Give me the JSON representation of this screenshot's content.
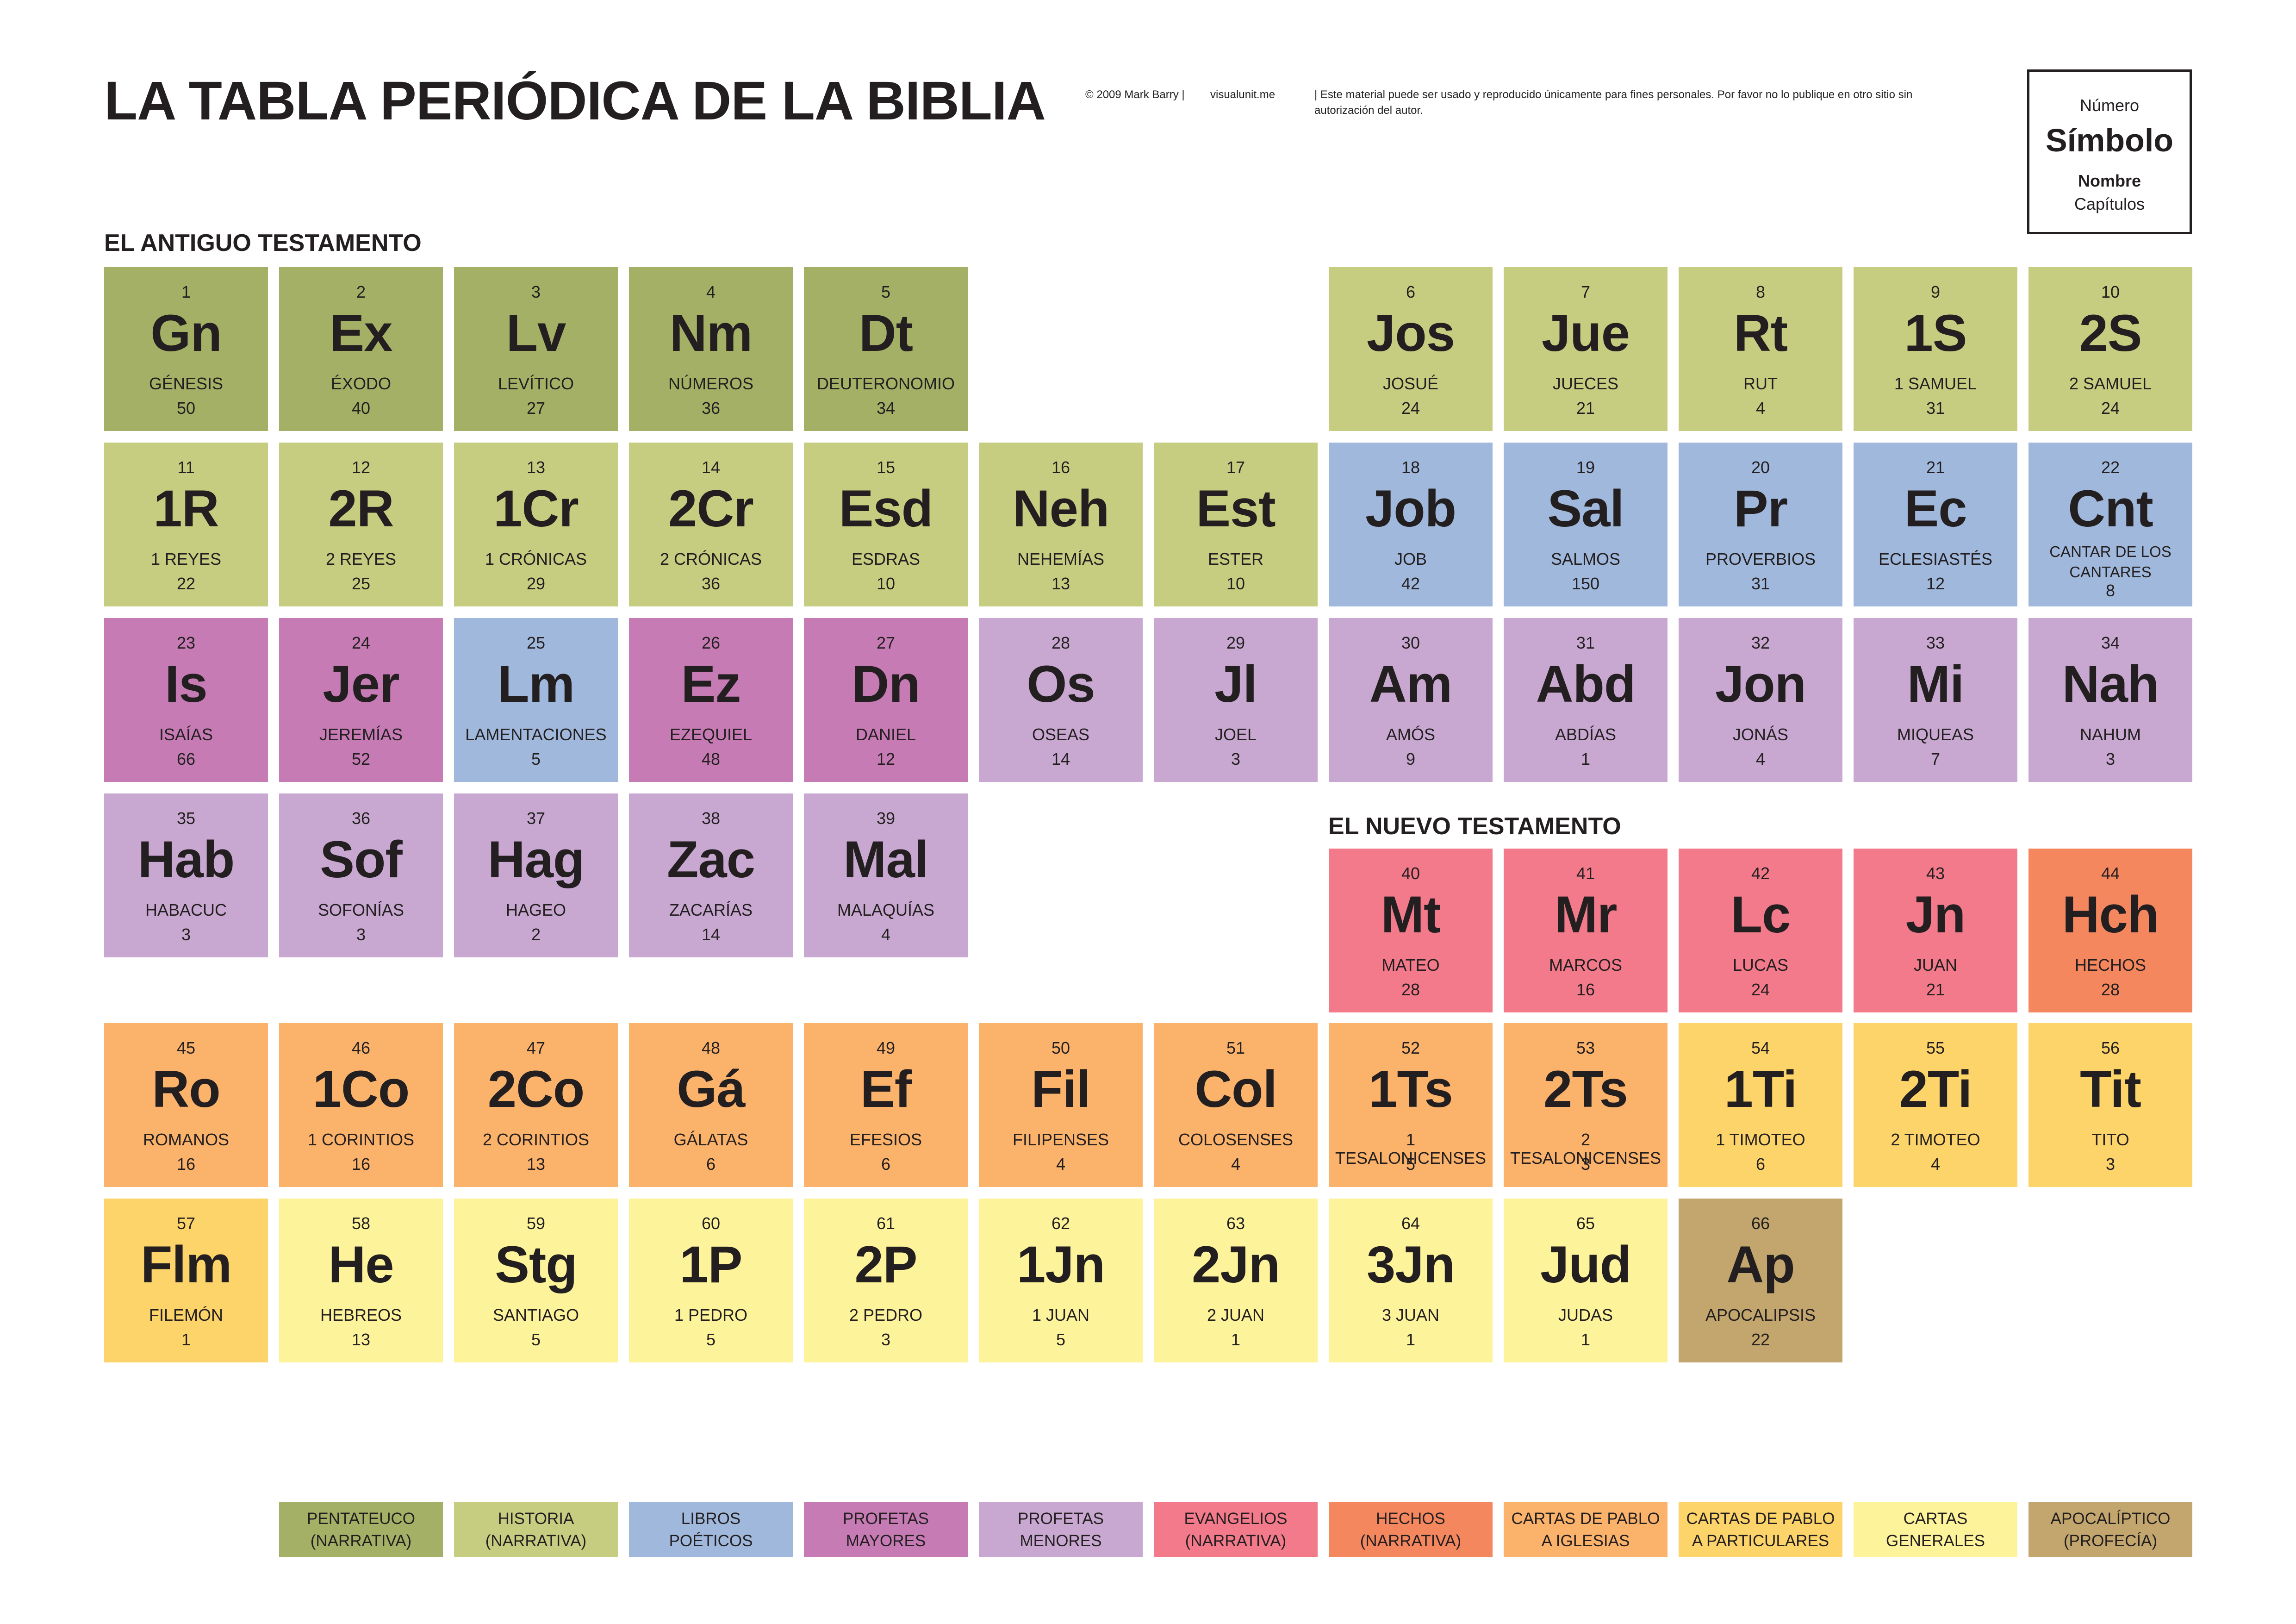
{
  "title": "LA TABLA PERIÓDICA DE LA BIBLIA",
  "credit": {
    "copyright": "© 2009 Mark Barry  |",
    "site": "visualunit.me",
    "notice": "|  Este material puede ser usado y reproducido únicamente para fines personales. Por favor no lo publique en otro sitio sin autorización del autor."
  },
  "key": {
    "number": "Número",
    "symbol": "Símbolo",
    "name": "Nombre",
    "chapters": "Capítulos"
  },
  "sections": {
    "old_testament": "EL ANTIGUO TESTAMENTO",
    "new_testament": "EL NUEVO TESTAMENTO"
  },
  "colors": {
    "pentateuco": "#a3b065",
    "historia": "#c6cd80",
    "poeticos": "#a0b8dc",
    "profetas_mayores": "#c67bb4",
    "profetas_menores": "#c8a8d1",
    "evangelios": "#f27a8a",
    "hechos": "#f5875f",
    "cartas_iglesias": "#fbb26a",
    "cartas_particulares": "#fdd469",
    "cartas_generales": "#fdf39b",
    "apocaliptico": "#c3a66d"
  },
  "elements": [
    {
      "n": "1",
      "s": "Gn",
      "name": "GÉNESIS",
      "ch": "50",
      "cat": "pentateuco"
    },
    {
      "n": "2",
      "s": "Ex",
      "name": "ÉXODO",
      "ch": "40",
      "cat": "pentateuco"
    },
    {
      "n": "3",
      "s": "Lv",
      "name": "LEVÍTICO",
      "ch": "27",
      "cat": "pentateuco"
    },
    {
      "n": "4",
      "s": "Nm",
      "name": "NÚMEROS",
      "ch": "36",
      "cat": "pentateuco"
    },
    {
      "n": "5",
      "s": "Dt",
      "name": "DEUTERONOMIO",
      "ch": "34",
      "cat": "pentateuco"
    },
    {
      "n": "6",
      "s": "Jos",
      "name": "JOSUÉ",
      "ch": "24",
      "cat": "historia"
    },
    {
      "n": "7",
      "s": "Jue",
      "name": "JUECES",
      "ch": "21",
      "cat": "historia"
    },
    {
      "n": "8",
      "s": "Rt",
      "name": "RUT",
      "ch": "4",
      "cat": "historia"
    },
    {
      "n": "9",
      "s": "1S",
      "name": "1 SAMUEL",
      "ch": "31",
      "cat": "historia"
    },
    {
      "n": "10",
      "s": "2S",
      "name": "2 SAMUEL",
      "ch": "24",
      "cat": "historia"
    },
    {
      "n": "11",
      "s": "1R",
      "name": "1 REYES",
      "ch": "22",
      "cat": "historia"
    },
    {
      "n": "12",
      "s": "2R",
      "name": "2 REYES",
      "ch": "25",
      "cat": "historia"
    },
    {
      "n": "13",
      "s": "1Cr",
      "name": "1 CRÓNICAS",
      "ch": "29",
      "cat": "historia"
    },
    {
      "n": "14",
      "s": "2Cr",
      "name": "2 CRÓNICAS",
      "ch": "36",
      "cat": "historia"
    },
    {
      "n": "15",
      "s": "Esd",
      "name": "ESDRAS",
      "ch": "10",
      "cat": "historia"
    },
    {
      "n": "16",
      "s": "Neh",
      "name": "NEHEMÍAS",
      "ch": "13",
      "cat": "historia"
    },
    {
      "n": "17",
      "s": "Est",
      "name": "ESTER",
      "ch": "10",
      "cat": "historia"
    },
    {
      "n": "18",
      "s": "Job",
      "name": "JOB",
      "ch": "42",
      "cat": "poeticos"
    },
    {
      "n": "19",
      "s": "Sal",
      "name": "SALMOS",
      "ch": "150",
      "cat": "poeticos"
    },
    {
      "n": "20",
      "s": "Pr",
      "name": "PROVERBIOS",
      "ch": "31",
      "cat": "poeticos"
    },
    {
      "n": "21",
      "s": "Ec",
      "name": "ECLESIASTÉS",
      "ch": "12",
      "cat": "poeticos"
    },
    {
      "n": "22",
      "s": "Cnt",
      "name": "CANTAR DE LOS CANTARES",
      "ch": "8",
      "cat": "poeticos"
    },
    {
      "n": "23",
      "s": "Is",
      "name": "ISAÍAS",
      "ch": "66",
      "cat": "profetas_mayores"
    },
    {
      "n": "24",
      "s": "Jer",
      "name": "JEREMÍAS",
      "ch": "52",
      "cat": "profetas_mayores"
    },
    {
      "n": "25",
      "s": "Lm",
      "name": "LAMENTACIONES",
      "ch": "5",
      "cat": "poeticos"
    },
    {
      "n": "26",
      "s": "Ez",
      "name": "EZEQUIEL",
      "ch": "48",
      "cat": "profetas_mayores"
    },
    {
      "n": "27",
      "s": "Dn",
      "name": "DANIEL",
      "ch": "12",
      "cat": "profetas_mayores"
    },
    {
      "n": "28",
      "s": "Os",
      "name": "OSEAS",
      "ch": "14",
      "cat": "profetas_menores"
    },
    {
      "n": "29",
      "s": "Jl",
      "name": "JOEL",
      "ch": "3",
      "cat": "profetas_menores"
    },
    {
      "n": "30",
      "s": "Am",
      "name": "AMÓS",
      "ch": "9",
      "cat": "profetas_menores"
    },
    {
      "n": "31",
      "s": "Abd",
      "name": "ABDÍAS",
      "ch": "1",
      "cat": "profetas_menores"
    },
    {
      "n": "32",
      "s": "Jon",
      "name": "JONÁS",
      "ch": "4",
      "cat": "profetas_menores"
    },
    {
      "n": "33",
      "s": "Mi",
      "name": "MIQUEAS",
      "ch": "7",
      "cat": "profetas_menores"
    },
    {
      "n": "34",
      "s": "Nah",
      "name": "NAHUM",
      "ch": "3",
      "cat": "profetas_menores"
    },
    {
      "n": "35",
      "s": "Hab",
      "name": "HABACUC",
      "ch": "3",
      "cat": "profetas_menores"
    },
    {
      "n": "36",
      "s": "Sof",
      "name": "SOFONÍAS",
      "ch": "3",
      "cat": "profetas_menores"
    },
    {
      "n": "37",
      "s": "Hag",
      "name": "HAGEO",
      "ch": "2",
      "cat": "profetas_menores"
    },
    {
      "n": "38",
      "s": "Zac",
      "name": "ZACARÍAS",
      "ch": "14",
      "cat": "profetas_menores"
    },
    {
      "n": "39",
      "s": "Mal",
      "name": "MALAQUÍAS",
      "ch": "4",
      "cat": "profetas_menores"
    },
    {
      "n": "40",
      "s": "Mt",
      "name": "MATEO",
      "ch": "28",
      "cat": "evangelios"
    },
    {
      "n": "41",
      "s": "Mr",
      "name": "MARCOS",
      "ch": "16",
      "cat": "evangelios"
    },
    {
      "n": "42",
      "s": "Lc",
      "name": "LUCAS",
      "ch": "24",
      "cat": "evangelios"
    },
    {
      "n": "43",
      "s": "Jn",
      "name": "JUAN",
      "ch": "21",
      "cat": "evangelios"
    },
    {
      "n": "44",
      "s": "Hch",
      "name": "HECHOS",
      "ch": "28",
      "cat": "hechos"
    },
    {
      "n": "45",
      "s": "Ro",
      "name": "ROMANOS",
      "ch": "16",
      "cat": "cartas_iglesias"
    },
    {
      "n": "46",
      "s": "1Co",
      "name": "1 CORINTIOS",
      "ch": "16",
      "cat": "cartas_iglesias"
    },
    {
      "n": "47",
      "s": "2Co",
      "name": "2 CORINTIOS",
      "ch": "13",
      "cat": "cartas_iglesias"
    },
    {
      "n": "48",
      "s": "Gá",
      "name": "GÁLATAS",
      "ch": "6",
      "cat": "cartas_iglesias"
    },
    {
      "n": "49",
      "s": "Ef",
      "name": "EFESIOS",
      "ch": "6",
      "cat": "cartas_iglesias"
    },
    {
      "n": "50",
      "s": "Fil",
      "name": "FILIPENSES",
      "ch": "4",
      "cat": "cartas_iglesias"
    },
    {
      "n": "51",
      "s": "Col",
      "name": "COLOSENSES",
      "ch": "4",
      "cat": "cartas_iglesias"
    },
    {
      "n": "52",
      "s": "1Ts",
      "name": "1 TESALONICENSES",
      "ch": "5",
      "cat": "cartas_iglesias"
    },
    {
      "n": "53",
      "s": "2Ts",
      "name": "2 TESALONICENSES",
      "ch": "3",
      "cat": "cartas_iglesias"
    },
    {
      "n": "54",
      "s": "1Ti",
      "name": "1 TIMOTEO",
      "ch": "6",
      "cat": "cartas_particulares"
    },
    {
      "n": "55",
      "s": "2Ti",
      "name": "2 TIMOTEO",
      "ch": "4",
      "cat": "cartas_particulares"
    },
    {
      "n": "56",
      "s": "Tit",
      "name": "TITO",
      "ch": "3",
      "cat": "cartas_particulares"
    },
    {
      "n": "57",
      "s": "Flm",
      "name": "FILEMÓN",
      "ch": "1",
      "cat": "cartas_particulares"
    },
    {
      "n": "58",
      "s": "He",
      "name": "HEBREOS",
      "ch": "13",
      "cat": "cartas_generales"
    },
    {
      "n": "59",
      "s": "Stg",
      "name": "SANTIAGO",
      "ch": "5",
      "cat": "cartas_generales"
    },
    {
      "n": "60",
      "s": "1P",
      "name": "1 PEDRO",
      "ch": "5",
      "cat": "cartas_generales"
    },
    {
      "n": "61",
      "s": "2P",
      "name": "2 PEDRO",
      "ch": "3",
      "cat": "cartas_generales"
    },
    {
      "n": "62",
      "s": "1Jn",
      "name": "1 JUAN",
      "ch": "5",
      "cat": "cartas_generales"
    },
    {
      "n": "63",
      "s": "2Jn",
      "name": "2 JUAN",
      "ch": "1",
      "cat": "cartas_generales"
    },
    {
      "n": "64",
      "s": "3Jn",
      "name": "3 JUAN",
      "ch": "1",
      "cat": "cartas_generales"
    },
    {
      "n": "65",
      "s": "Jud",
      "name": "JUDAS",
      "ch": "1",
      "cat": "cartas_generales"
    },
    {
      "n": "66",
      "s": "Ap",
      "name": "APOCALIPSIS",
      "ch": "22",
      "cat": "apocaliptico"
    }
  ],
  "legend": [
    {
      "cat": "pentateuco",
      "l1": "PENTATEUCO",
      "l2": "(NARRATIVA)"
    },
    {
      "cat": "historia",
      "l1": "HISTORIA",
      "l2": "(NARRATIVA)"
    },
    {
      "cat": "poeticos",
      "l1": "LIBROS",
      "l2": "POÉTICOS"
    },
    {
      "cat": "profetas_mayores",
      "l1": "PROFETAS",
      "l2": "MAYORES"
    },
    {
      "cat": "profetas_menores",
      "l1": "PROFETAS",
      "l2": "MENORES"
    },
    {
      "cat": "evangelios",
      "l1": "EVANGELIOS",
      "l2": "(NARRATIVA)"
    },
    {
      "cat": "hechos",
      "l1": "HECHOS",
      "l2": "(NARRATIVA)"
    },
    {
      "cat": "cartas_iglesias",
      "l1": "CARTAS DE PABLO",
      "l2": "A IGLESIAS"
    },
    {
      "cat": "cartas_particulares",
      "l1": "CARTAS DE PABLO",
      "l2": "A PARTICULARES"
    },
    {
      "cat": "cartas_generales",
      "l1": "CARTAS",
      "l2": "GENERALES"
    },
    {
      "cat": "apocaliptico",
      "l1": "APOCALÍPTICO",
      "l2": "(PROFECÍA)"
    }
  ]
}
